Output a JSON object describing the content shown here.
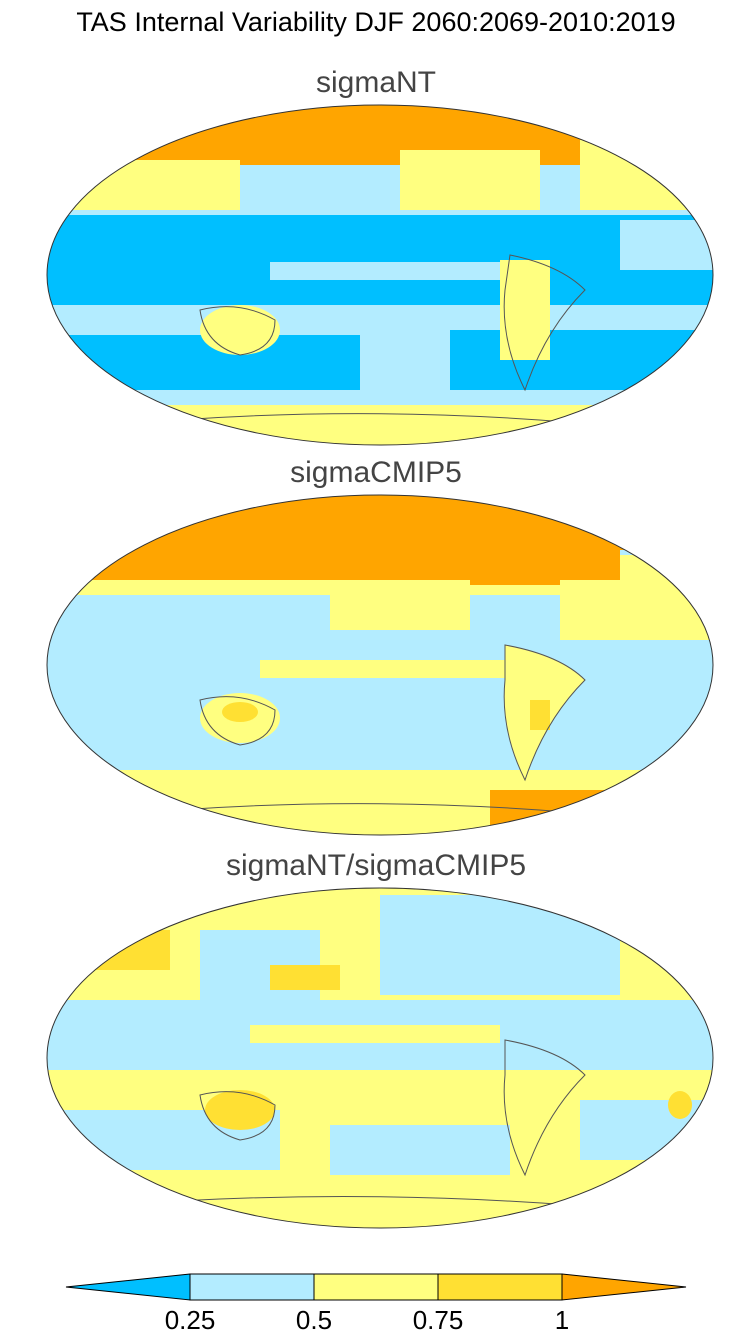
{
  "title": "TAS Internal Variability DJF 2060:2069-2010:2019",
  "panels": [
    {
      "title": "sigmaNT"
    },
    {
      "title": "sigmaCMIP5"
    },
    {
      "title": "sigmaNT/sigmaCMIP5"
    }
  ],
  "colorbar": {
    "ticks": [
      0.25,
      0.5,
      0.75,
      1
    ],
    "colors": [
      "#00bfff",
      "#b3ecff",
      "#ffff80",
      "#ffe033",
      "#ffa500"
    ]
  }
}
